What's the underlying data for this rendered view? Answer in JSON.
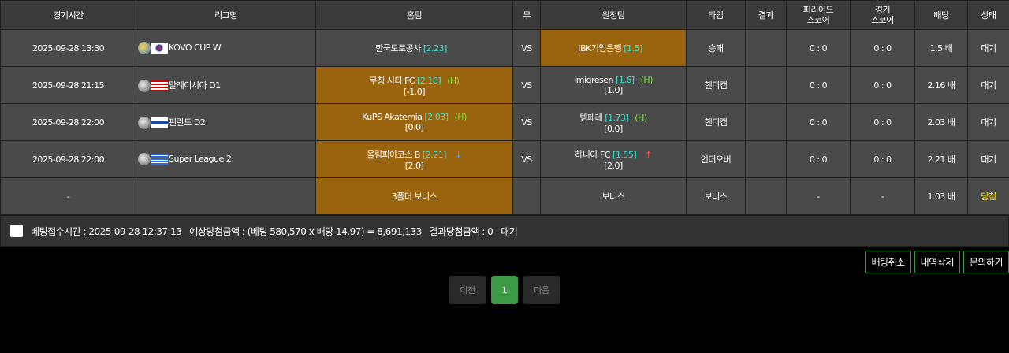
{
  "headers": [
    "경기시간",
    "리그명",
    "홈팀",
    "무",
    "원정팀",
    "타입",
    "결과",
    "피리어드\n스코어",
    "경기\n스코어",
    "배당",
    "상태"
  ],
  "rows": [
    {
      "time": "2025-09-28 13:30",
      "sport_icon": "volleyball-icon",
      "flag": "kr",
      "league": "KOVO CUP W",
      "home": "한국도로공사",
      "home_odds": "[2.23]",
      "home_h": "",
      "home_arrow": "",
      "home_line": "",
      "draw": "VS",
      "away": "IBK기업은행",
      "away_odds": "[1.5]",
      "away_h": "",
      "away_arrow": "",
      "away_line": "",
      "selected": "away",
      "type": "승패",
      "result": "",
      "period": "0 : 0",
      "score": "0 : 0",
      "odds": "1.5 배",
      "status": "대기"
    },
    {
      "time": "2025-09-28 21:15",
      "sport_icon": "soccer-ball-icon",
      "flag": "my",
      "league": "말레이시아 D1",
      "home": "쿠칭 시티 FC",
      "home_odds": "[2.16]",
      "home_h": "(H)",
      "home_arrow": "",
      "home_line": "[-1.0]",
      "draw": "VS",
      "away": "Imigresen",
      "away_odds": "[1.6]",
      "away_h": "(H)",
      "away_arrow": "",
      "away_line": "[1.0]",
      "selected": "home",
      "type": "핸디캡",
      "result": "",
      "period": "0 : 0",
      "score": "0 : 0",
      "odds": "2.16 배",
      "status": "대기"
    },
    {
      "time": "2025-09-28 22:00",
      "sport_icon": "soccer-ball-icon",
      "flag": "fi",
      "league": "핀란드 D2",
      "home": "KuPS Akatemia",
      "home_odds": "[2.03]",
      "home_h": "(H)",
      "home_arrow": "",
      "home_line": "[0.0]",
      "draw": "VS",
      "away": "템페레",
      "away_odds": "[1.73]",
      "away_h": "(H)",
      "away_arrow": "",
      "away_line": "[0.0]",
      "selected": "home",
      "type": "핸디캡",
      "result": "",
      "period": "0 : 0",
      "score": "0 : 0",
      "odds": "2.03 배",
      "status": "대기"
    },
    {
      "time": "2025-09-28 22:00",
      "sport_icon": "soccer-ball-icon",
      "flag": "gr",
      "league": "Super League 2",
      "home": "올림피아코스 B",
      "home_odds": "[2.21]",
      "home_h": "",
      "home_arrow": "↓",
      "home_line": "[2.0]",
      "draw": "VS",
      "away": "하니아 FC",
      "away_odds": "[1.55]",
      "away_h": "",
      "away_arrow": "↑",
      "away_line": "[2.0]",
      "selected": "home",
      "type": "언더오버",
      "result": "",
      "period": "0 : 0",
      "score": "0 : 0",
      "odds": "2.21 배",
      "status": "대기"
    }
  ],
  "bonus": {
    "time": "-",
    "home": "3폴더 보너스",
    "away": "보너스",
    "type": "보너스",
    "period": "-",
    "score": "-",
    "odds": "1.03 배",
    "status": "당첨"
  },
  "footer": "베팅접수시간 : 2025-09-28 12:37:13   예상당첨금액 : (베팅 580,570 x 배당 14.97) = 8,691,133   결과당첨금액 : 0   대기",
  "actions": [
    "배팅취소",
    "내역삭제",
    "문의하기"
  ],
  "pagination": {
    "prev": "이전",
    "current": "1",
    "next": "다음"
  }
}
